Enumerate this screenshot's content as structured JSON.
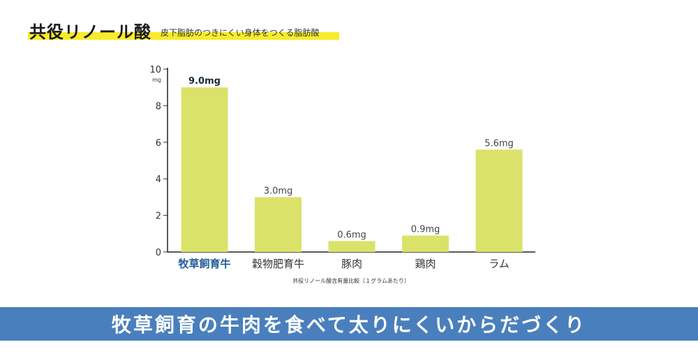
{
  "header": {
    "title": "共役リノール酸",
    "subtitle": "皮下脂肪のつきにくい身体をつくる脂肪酸",
    "highlight_color": "#f7ec2b"
  },
  "chart_data": {
    "type": "bar",
    "categories": [
      "牧草飼育牛",
      "穀物肥育牛",
      "豚肉",
      "鶏肉",
      "ラム"
    ],
    "values": [
      9.0,
      3.0,
      0.6,
      0.9,
      5.6
    ],
    "value_labels": [
      "9.0mg",
      "3.0mg",
      "0.6mg",
      "0.9mg",
      "5.6mg"
    ],
    "highlight_index": 0,
    "yticks": [
      "0",
      "2",
      "4",
      "6",
      "8",
      "10"
    ],
    "ytick_values": [
      0,
      2,
      4,
      6,
      8,
      10
    ],
    "yunit": "mg",
    "ylim": [
      0,
      10
    ],
    "xlabel": "共役リノール酸含有量比較（１グラムあたり）",
    "grid": false,
    "bar_color": "#dbe26a",
    "highlight_color": "#1f5a99"
  },
  "banner": {
    "text": "牧草飼育の牛肉を食べて太りにくいからだづくり",
    "background": "#4a7fbd"
  }
}
